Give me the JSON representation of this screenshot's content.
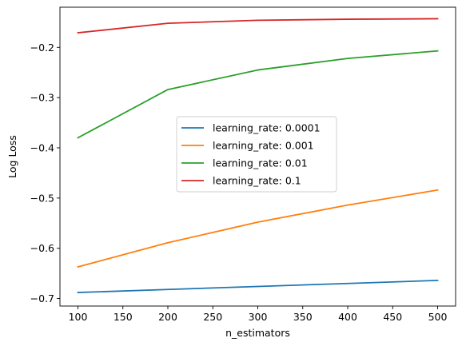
{
  "chart_data": {
    "type": "line",
    "xlabel": "n_estimators",
    "ylabel": "Log Loss",
    "x": [
      100,
      200,
      300,
      400,
      500
    ],
    "xlim": [
      80,
      520
    ],
    "ylim": [
      -0.715,
      -0.12
    ],
    "xticks": [
      100,
      150,
      200,
      250,
      300,
      350,
      400,
      450,
      500
    ],
    "yticks": [
      -0.7,
      -0.6,
      -0.5,
      -0.4,
      -0.3,
      -0.2
    ],
    "ytick_labels": [
      "−0.7",
      "−0.6",
      "−0.5",
      "−0.4",
      "−0.3",
      "−0.2"
    ],
    "grid": false,
    "legend_position": "center",
    "series": [
      {
        "name": "learning_rate: 0.0001",
        "color": "#1f77b4",
        "values": [
          -0.688,
          -0.682,
          -0.676,
          -0.67,
          -0.664
        ]
      },
      {
        "name": "learning_rate: 0.001",
        "color": "#ff7f0e",
        "values": [
          -0.637,
          -0.589,
          -0.548,
          -0.514,
          -0.484
        ]
      },
      {
        "name": "learning_rate: 0.01",
        "color": "#2ca02c",
        "values": [
          -0.38,
          -0.284,
          -0.245,
          -0.222,
          -0.207
        ]
      },
      {
        "name": "learning_rate: 0.1",
        "color": "#d62728",
        "values": [
          -0.171,
          -0.152,
          -0.146,
          -0.144,
          -0.143
        ]
      }
    ]
  }
}
